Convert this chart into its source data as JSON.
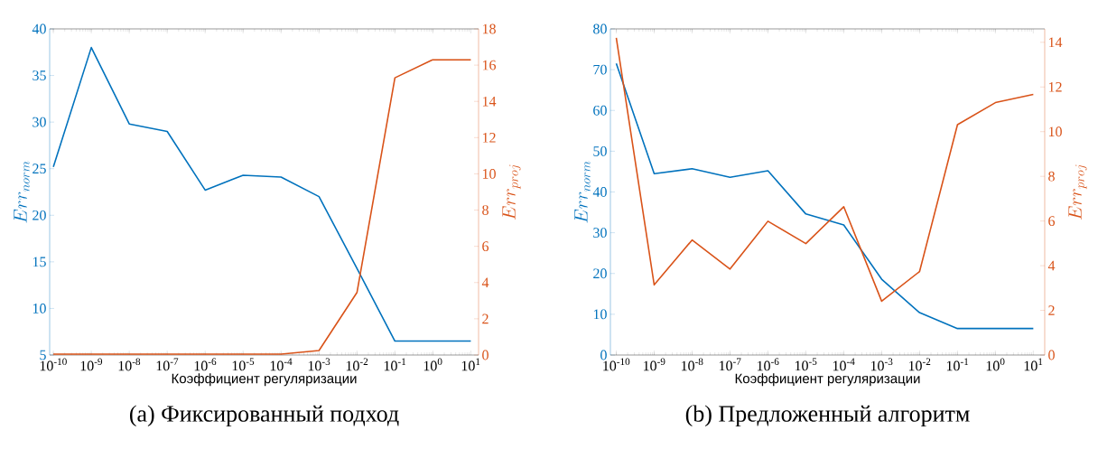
{
  "chart_data": [
    {
      "type": "line",
      "title": "(a) Фиксированный подход",
      "xlabel": "Коэффициент регуляризации",
      "ylabel": "Err_{norm}",
      "y2label": "Err_{proj}",
      "log": "x",
      "x": [
        1e-10,
        1e-09,
        1e-08,
        1e-07,
        1e-06,
        1e-05,
        0.0001,
        0.001,
        0.01,
        0.1,
        1,
        10
      ],
      "xlim": [
        8e-11,
        16
      ],
      "xticks": [
        {
          "value": 1e-10,
          "label": "10$^{-10}$"
        },
        {
          "value": 1e-09,
          "label": "10$^{-9}$"
        },
        {
          "value": 1e-08,
          "label": "10$^{-8}$"
        },
        {
          "value": 1e-07,
          "label": "10$^{-7}$"
        },
        {
          "value": 1e-06,
          "label": "10$^{-6}$"
        },
        {
          "value": 1e-05,
          "label": "10$^{-5}$"
        },
        {
          "value": 0.0001,
          "label": "10$^{-4}$"
        },
        {
          "value": 0.001,
          "label": "10$^{-3}$"
        },
        {
          "value": 0.01,
          "label": "10$^{-2}$"
        },
        {
          "value": 0.1,
          "label": "10$^{-1}$"
        },
        {
          "value": 1,
          "label": "10$^{0}$"
        },
        {
          "value": 10,
          "label": "10$^{1}$"
        }
      ],
      "ylim": [
        5,
        40
      ],
      "yticks": [
        5,
        10,
        15,
        20,
        25,
        30,
        35,
        40
      ],
      "y2lim": [
        0,
        18
      ],
      "y2ticks": [
        0,
        2,
        4,
        6,
        8,
        10,
        12,
        14,
        16,
        18
      ],
      "series": [
        {
          "color": "#0072bd",
          "values": [
            25.2,
            38.0,
            29.8,
            29.0,
            22.7,
            24.3,
            24.1,
            22.0,
            14.3,
            6.5,
            6.5,
            6.5
          ]
        },
        {
          "color": "#d95319",
          "axis": "y2",
          "values": [
            0.05,
            0.05,
            0.05,
            0.05,
            0.05,
            0.05,
            0.05,
            0.25,
            3.45,
            15.3,
            16.3,
            16.3
          ]
        }
      ]
    },
    {
      "type": "line",
      "title": "(b) Предложенный алгоритм",
      "xlabel": "Коэффициент регуляризации",
      "ylabel": "Err_{norm}",
      "y2label": "Err_{proj}",
      "log": "x",
      "x": [
        1e-10,
        1e-09,
        1e-08,
        1e-07,
        1e-06,
        1e-05,
        0.0001,
        0.001,
        0.01,
        0.1,
        1,
        10
      ],
      "xlim": [
        7e-11,
        20
      ],
      "xticks": [
        {
          "value": 1e-10,
          "label": "10$^{-10}$"
        },
        {
          "value": 1e-09,
          "label": "10$^{-9}$"
        },
        {
          "value": 1e-08,
          "label": "10$^{-8}$"
        },
        {
          "value": 1e-07,
          "label": "10$^{-7}$"
        },
        {
          "value": 1e-06,
          "label": "10$^{-6}$"
        },
        {
          "value": 1e-05,
          "label": "10$^{-5}$"
        },
        {
          "value": 0.0001,
          "label": "10$^{-4}$"
        },
        {
          "value": 0.001,
          "label": "10$^{-3}$"
        },
        {
          "value": 0.01,
          "label": "10$^{-2}$"
        },
        {
          "value": 0.1,
          "label": "10$^{-1}$"
        },
        {
          "value": 1,
          "label": "10$^{0}$"
        },
        {
          "value": 10,
          "label": "10$^{1}$"
        }
      ],
      "ylim": [
        0,
        80
      ],
      "yticks": [
        0,
        10,
        20,
        30,
        40,
        50,
        60,
        70,
        80
      ],
      "y2lim": [
        0,
        14.6
      ],
      "y2ticks": [
        0,
        2,
        4,
        6,
        8,
        10,
        12,
        14
      ],
      "series": [
        {
          "color": "#0072bd",
          "values": [
            71.5,
            44.5,
            45.7,
            43.6,
            45.2,
            34.6,
            31.9,
            18.6,
            10.4,
            6.5,
            6.5,
            6.5
          ]
        },
        {
          "color": "#d95319",
          "axis": "y2",
          "values": [
            14.2,
            3.14,
            5.15,
            3.85,
            5.99,
            4.99,
            6.64,
            2.41,
            3.74,
            10.31,
            11.3,
            11.67
          ]
        }
      ]
    }
  ]
}
